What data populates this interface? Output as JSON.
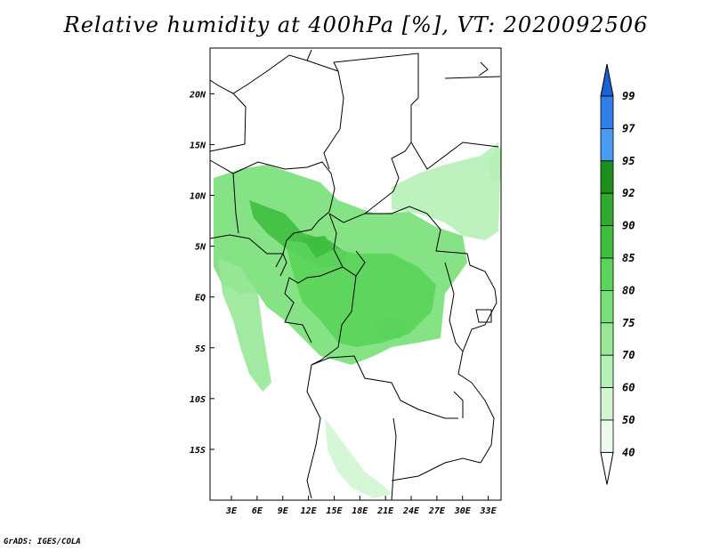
{
  "title": "Relative humidity at 400hPa [%], VT: 2020092506",
  "credit": "GrADS: IGES/COLA",
  "map": {
    "lon_ticks": [
      "3E",
      "6E",
      "9E",
      "12E",
      "15E",
      "18E",
      "21E",
      "24E",
      "27E",
      "30E",
      "33E"
    ],
    "lat_ticks": [
      "20N",
      "15N",
      "10N",
      "5N",
      "EQ",
      "5S",
      "10S",
      "15S"
    ],
    "lon_range": [
      0.5,
      34.5
    ],
    "lat_range": [
      -20,
      24.5
    ]
  },
  "colorbar": {
    "levels": [
      "99",
      "97",
      "95",
      "92",
      "90",
      "85",
      "80",
      "75",
      "70",
      "60",
      "50",
      "40"
    ],
    "colors": [
      "#1a62d4",
      "#2f7ee6",
      "#4a9cf2",
      "#1d8f1d",
      "#2faa2f",
      "#3fbf3f",
      "#5ad45a",
      "#78e078",
      "#98e898",
      "#b6f0b6",
      "#d2f6d2",
      "#ecfbec"
    ]
  },
  "humidity_regions": [
    {
      "name": "west-africa-band",
      "level": "75",
      "color": "#78e078"
    },
    {
      "name": "central-core",
      "level": "85",
      "color": "#3fbf3f"
    },
    {
      "name": "congo-basin",
      "level": "80",
      "color": "#5ad45a"
    },
    {
      "name": "sudan-plume",
      "level": "60",
      "color": "#b6f0b6"
    },
    {
      "name": "gabon-coast",
      "level": "70",
      "color": "#98e898"
    },
    {
      "name": "angola-trail",
      "level": "50",
      "color": "#d2f6d2"
    }
  ]
}
